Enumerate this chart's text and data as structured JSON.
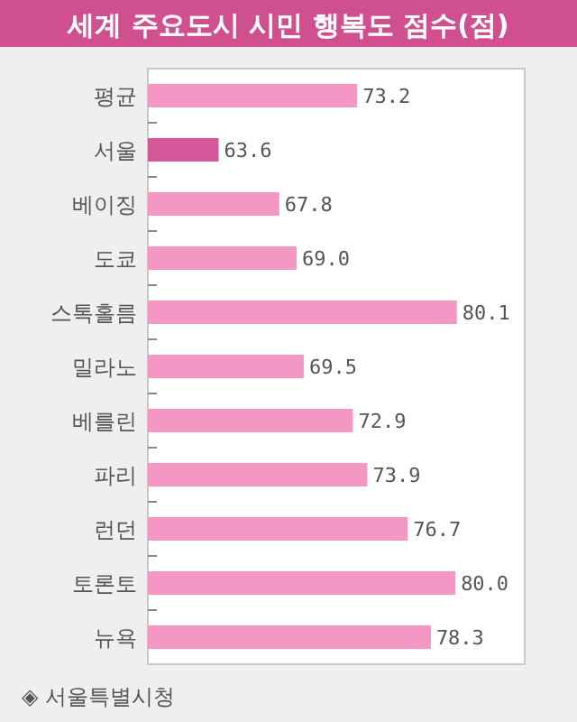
{
  "chart_data": {
    "type": "bar",
    "orientation": "horizontal",
    "title": "세계 주요도시 시민 행복도 점수(점)",
    "categories": [
      "평균",
      "서울",
      "베이징",
      "도쿄",
      "스톡홀름",
      "밀라노",
      "베를린",
      "파리",
      "런던",
      "토론토",
      "뉴욕"
    ],
    "values": [
      73.2,
      63.6,
      67.8,
      69.0,
      80.1,
      69.5,
      72.9,
      73.9,
      76.7,
      80.0,
      78.3
    ],
    "value_labels": [
      "73.2",
      "63.6",
      "67.8",
      "69.0",
      "80.1",
      "69.5",
      "72.9",
      "73.9",
      "76.7",
      "80.0",
      "78.3"
    ],
    "colors": [
      "#f497c5",
      "#d4579a",
      "#f497c5",
      "#f497c5",
      "#f497c5",
      "#f497c5",
      "#f497c5",
      "#f497c5",
      "#f497c5",
      "#f497c5",
      "#f497c5"
    ],
    "xlim": [
      58.7,
      84.8
    ],
    "annotations": [
      "◈ 서울특별시청"
    ]
  }
}
